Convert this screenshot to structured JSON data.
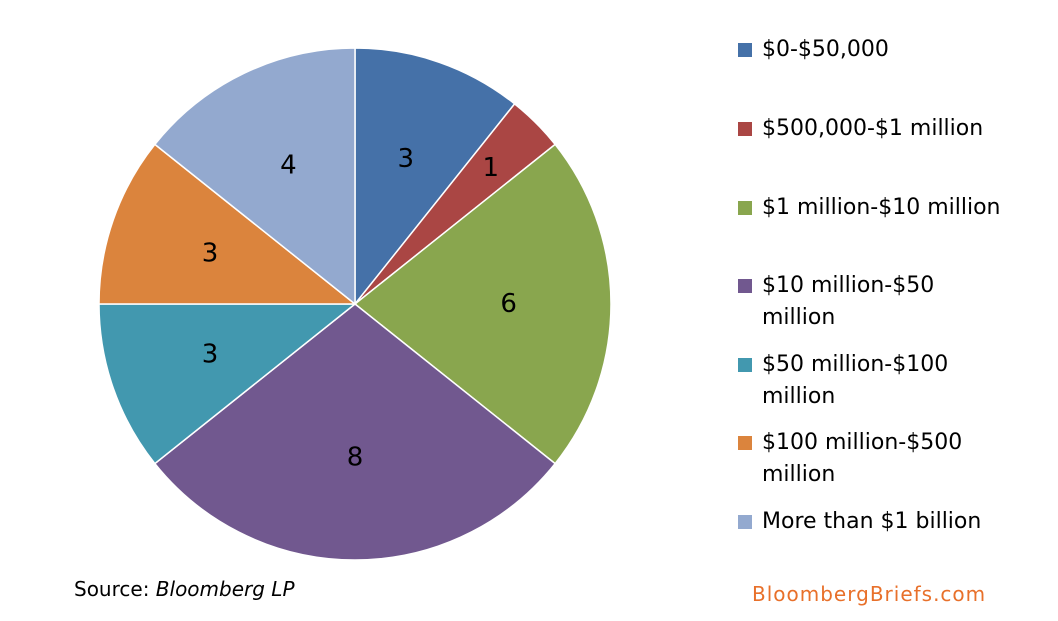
{
  "chart_data": {
    "type": "pie",
    "categories": [
      "$0-$50,000",
      "$500,000-$1 million",
      "$1 million-$10 million",
      "$10 million-$50 million",
      "$50 million-$100 million",
      "$100 million-$500 million",
      "More than $1 billion"
    ],
    "values": [
      3,
      1,
      6,
      8,
      3,
      3,
      4
    ],
    "colors": [
      "#4571a8",
      "#aa4644",
      "#89a64e",
      "#71588f",
      "#4298af",
      "#db843d",
      "#93a9cf"
    ],
    "data_labels": true,
    "legend": "right",
    "start_angle": "12 o'clock",
    "direction": "clockwise"
  },
  "legend": {
    "items": [
      {
        "label": "$0-$50,000"
      },
      {
        "label": "$500,000-$1 million"
      },
      {
        "label": "$1 million-$10 million"
      },
      {
        "label": "$10 million-$50 million"
      },
      {
        "label": "$50 million-$100 million"
      },
      {
        "label": "$100 million-$500 million"
      },
      {
        "label": "More than $1 billion"
      }
    ]
  },
  "footer": {
    "source_prefix": "Source: ",
    "source_name": "Bloomberg LP",
    "brand_part1": "Bloomberg",
    "brand_part2": "Briefs",
    "brand_part3": ".com",
    "brand_color": "#e8702a"
  }
}
